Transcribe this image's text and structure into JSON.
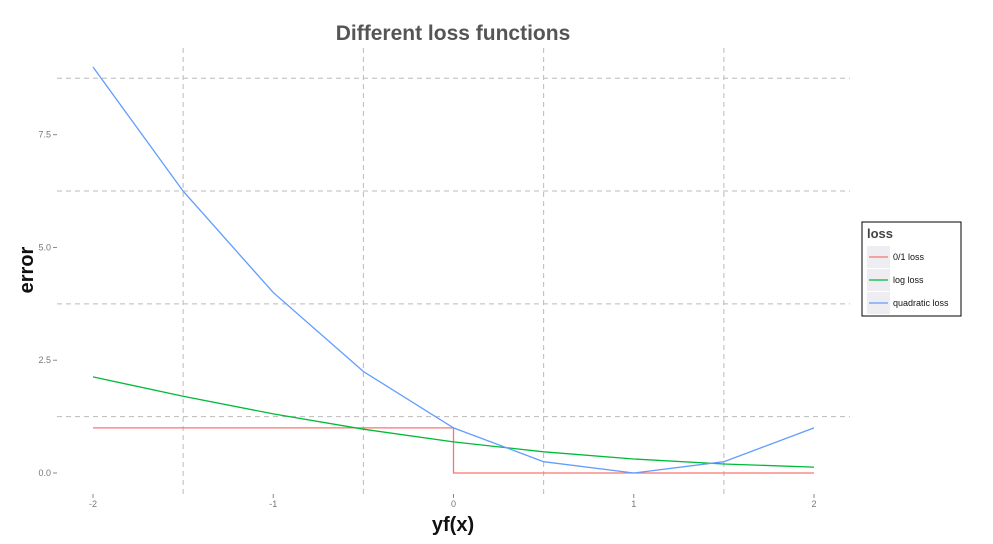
{
  "chart_data": {
    "type": "line",
    "title": "Different loss functions",
    "xlabel": "yf(x)",
    "ylabel": "error",
    "xlim": [
      -2,
      2
    ],
    "ylim": [
      0,
      9
    ],
    "x_ticks": [
      -2,
      -1,
      0,
      1,
      2
    ],
    "x_tick_labels": [
      "-2",
      "-1",
      "0",
      "1",
      "2"
    ],
    "y_ticks": [
      0,
      2.5,
      5,
      7.5
    ],
    "y_tick_labels": [
      "0.0",
      "2.5",
      "5.0",
      "7.5"
    ],
    "grid": "dashed",
    "legend": {
      "title": "loss",
      "placement": "right"
    },
    "series": [
      {
        "name": "0/1 loss",
        "color": "#f8766d",
        "x": [
          -2,
          0,
          0,
          2
        ],
        "y": [
          1,
          1,
          0,
          0
        ]
      },
      {
        "name": "log loss",
        "color": "#00ba38",
        "x": [
          -2,
          -1.5,
          -1,
          -0.5,
          0,
          0.5,
          1,
          1.5,
          2
        ],
        "y": [
          2.13,
          1.7,
          1.31,
          0.97,
          0.69,
          0.47,
          0.31,
          0.2,
          0.13
        ]
      },
      {
        "name": "quadratic loss",
        "color": "#619cff",
        "x": [
          -2,
          -1.5,
          -1,
          -0.5,
          0,
          0.5,
          1,
          1.5,
          2
        ],
        "y": [
          9,
          6.25,
          4,
          2.25,
          1,
          0.25,
          0,
          0.25,
          1
        ]
      }
    ]
  }
}
